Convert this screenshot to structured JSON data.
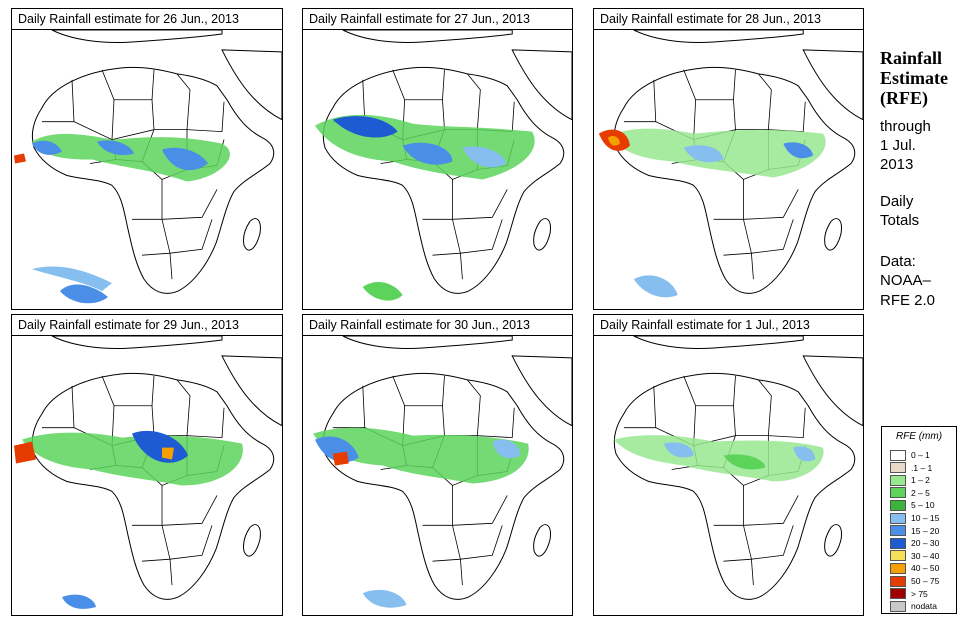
{
  "panels": [
    {
      "title": "Daily Rainfall estimate for  26 Jun., 2013"
    },
    {
      "title": "Daily Rainfall estimate for  27 Jun., 2013"
    },
    {
      "title": "Daily Rainfall estimate for  28 Jun., 2013"
    },
    {
      "title": "Daily Rainfall estimate for  29 Jun., 2013"
    },
    {
      "title": "Daily Rainfall estimate for  30 Jun., 2013"
    },
    {
      "title": "Daily Rainfall estimate for  1 Jul., 2013"
    }
  ],
  "side_info": {
    "title_line1": "Rainfall",
    "title_line2": "Estimate",
    "title_line3": "(RFE)",
    "through_label": "through",
    "through_date_line1": "1 Jul.",
    "through_date_line2": "2013",
    "totals_line1": "Daily",
    "totals_line2": "Totals",
    "data_label": "Data:",
    "data_source_line1": "NOAA–",
    "data_source_line2": "RFE 2.0"
  },
  "legend": {
    "title": "RFE (mm)",
    "items": [
      {
        "label": "0 – 1",
        "color": "#ffffff"
      },
      {
        "label": ".1 – 1",
        "color": "#e8dcc8"
      },
      {
        "label": "1 – 2",
        "color": "#98e890"
      },
      {
        "label": "2 – 5",
        "color": "#5cd45c"
      },
      {
        "label": "5 – 10",
        "color": "#3cb43c"
      },
      {
        "label": "10 – 15",
        "color": "#86bef0"
      },
      {
        "label": "15 – 20",
        "color": "#4a8ee8"
      },
      {
        "label": "20 – 30",
        "color": "#1e5ad2"
      },
      {
        "label": "30 – 40",
        "color": "#f5e05a"
      },
      {
        "label": "40 – 50",
        "color": "#f5a000"
      },
      {
        "label": "50 – 75",
        "color": "#e63c00"
      },
      {
        "label": "> 75",
        "color": "#a00000"
      },
      {
        "label": "nodata",
        "color": "#c8c8c8"
      }
    ]
  }
}
